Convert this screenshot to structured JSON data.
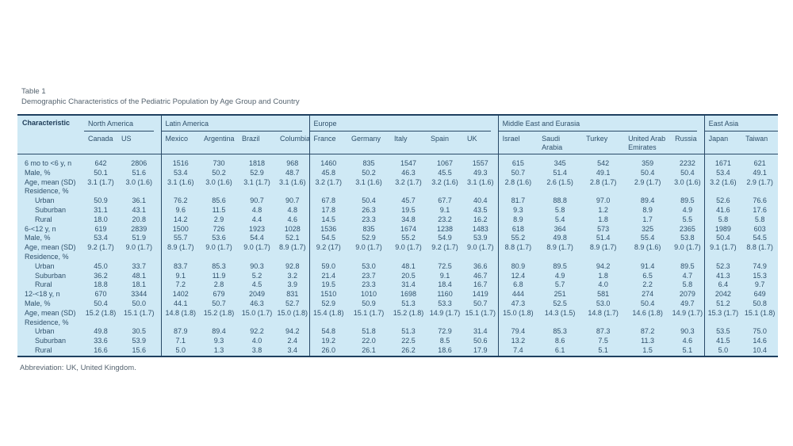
{
  "colors": {
    "table_background": "#cfe9f5",
    "rule": "#2a4a68",
    "text": "#2f506b"
  },
  "table": {
    "label": "Table 1",
    "title": "Demographic Characteristics of the Pediatric Population by Age Group and Country",
    "footnote": "Abbreviation: UK, United Kingdom.",
    "characteristic_header": "Characteristic",
    "regions": [
      {
        "name": "North America",
        "countries": [
          "Canada",
          "US"
        ]
      },
      {
        "name": "Latin America",
        "countries": [
          "Mexico",
          "Argentina",
          "Brazil",
          "Columbia"
        ]
      },
      {
        "name": "Europe",
        "countries": [
          "France",
          "Germany",
          "Italy",
          "Spain",
          "UK"
        ]
      },
      {
        "name": "Middle East and Eurasia",
        "countries": [
          "Israel",
          "Saudi Arabia",
          "Turkey",
          "United Arab Emirates",
          "Russia"
        ]
      },
      {
        "name": "East Asia",
        "countries": [
          "Japan",
          "Taiwan"
        ]
      }
    ],
    "rows": [
      {
        "label": "6 mo to <6 y, n",
        "indent": false,
        "values": [
          "642",
          "2806",
          "1516",
          "730",
          "1818",
          "968",
          "1460",
          "835",
          "1547",
          "1067",
          "1557",
          "615",
          "345",
          "542",
          "359",
          "2232",
          "1671",
          "621"
        ]
      },
      {
        "label": "Male, %",
        "indent": false,
        "values": [
          "50.1",
          "51.6",
          "53.4",
          "50.2",
          "52.9",
          "48.7",
          "45.8",
          "50.2",
          "46.3",
          "45.5",
          "49.3",
          "50.7",
          "51.4",
          "49.1",
          "50.4",
          "50.4",
          "53.4",
          "49.1"
        ]
      },
      {
        "label": "Age, mean (SD)",
        "indent": false,
        "values": [
          "3.1 (1.7)",
          "3.0 (1.6)",
          "3.1 (1.6)",
          "3.0 (1.6)",
          "3.1 (1.7)",
          "3.1 (1.6)",
          "3.2 (1.7)",
          "3.1 (1.6)",
          "3.2 (1.7)",
          "3.2 (1.6)",
          "3.1 (1.6)",
          "2.8 (1.6)",
          "2.6 (1.5)",
          "2.8 (1.7)",
          "2.9 (1.7)",
          "3.0 (1.6)",
          "3.2 (1.6)",
          "2.9 (1.7)"
        ]
      },
      {
        "label": "Residence, %",
        "indent": false,
        "values": []
      },
      {
        "label": "Urban",
        "indent": true,
        "values": [
          "50.9",
          "36.1",
          "76.2",
          "85.6",
          "90.7",
          "90.7",
          "67.8",
          "50.4",
          "45.7",
          "67.7",
          "40.4",
          "81.7",
          "88.8",
          "97.0",
          "89.4",
          "89.5",
          "52.6",
          "76.6"
        ]
      },
      {
        "label": "Suburban",
        "indent": true,
        "values": [
          "31.1",
          "43.1",
          "9.6",
          "11.5",
          "4.8",
          "4.8",
          "17.8",
          "26.3",
          "19.5",
          "9.1",
          "43.5",
          "9.3",
          "5.8",
          "1.2",
          "8.9",
          "4.9",
          "41.6",
          "17.6"
        ]
      },
      {
        "label": "Rural",
        "indent": true,
        "values": [
          "18.0",
          "20.8",
          "14.2",
          "2.9",
          "4.4",
          "4.6",
          "14.5",
          "23.3",
          "34.8",
          "23.2",
          "16.2",
          "8.9",
          "5.4",
          "1.8",
          "1.7",
          "5.5",
          "5.8",
          "5.8"
        ]
      },
      {
        "label": "6-<12 y, n",
        "indent": false,
        "values": [
          "619",
          "2839",
          "1500",
          "726",
          "1923",
          "1028",
          "1536",
          "835",
          "1674",
          "1238",
          "1483",
          "618",
          "364",
          "573",
          "325",
          "2365",
          "1989",
          "603"
        ]
      },
      {
        "label": "Male, %",
        "indent": false,
        "values": [
          "53.4",
          "51.9",
          "55.7",
          "53.6",
          "54.4",
          "52.1",
          "54.5",
          "52.9",
          "55.2",
          "54.9",
          "53.9",
          "55.2",
          "49.8",
          "51.4",
          "55.4",
          "53.8",
          "50.4",
          "54.5"
        ]
      },
      {
        "label": "Age, mean (SD)",
        "indent": false,
        "values": [
          "9.2 (1.7)",
          "9.0 (1.7)",
          "8.9 (1.7)",
          "9.0 (1.7)",
          "9.0 (1.7)",
          "8.9 (1.7)",
          "9.2 (17)",
          "9.0 (1.7)",
          "9.0 (1.7)",
          "9.2 (1.7)",
          "9.0 (1.7)",
          "8.8 (1.7)",
          "8.9 (1.7)",
          "8.9 (1.7)",
          "8.9 (1.6)",
          "9.0 (1.7)",
          "9.1 (1.7)",
          "8.8 (1.7)"
        ]
      },
      {
        "label": "Residence, %",
        "indent": false,
        "values": []
      },
      {
        "label": "Urban",
        "indent": true,
        "values": [
          "45.0",
          "33.7",
          "83.7",
          "85.3",
          "90.3",
          "92.8",
          "59.0",
          "53.0",
          "48.1",
          "72.5",
          "36.6",
          "80.9",
          "89.5",
          "94.2",
          "91.4",
          "89.5",
          "52.3",
          "74.9"
        ]
      },
      {
        "label": "Suburban",
        "indent": true,
        "values": [
          "36.2",
          "48.1",
          "9.1",
          "11.9",
          "5.2",
          "3.2",
          "21.4",
          "23.7",
          "20.5",
          "9.1",
          "46.7",
          "12.4",
          "4.9",
          "1.8",
          "6.5",
          "4.7",
          "41.3",
          "15.3"
        ]
      },
      {
        "label": "Rural",
        "indent": true,
        "values": [
          "18.8",
          "18.1",
          "7.2",
          "2.8",
          "4.5",
          "3.9",
          "19.5",
          "23.3",
          "31.4",
          "18.4",
          "16.7",
          "6.8",
          "5.7",
          "4.0",
          "2.2",
          "5.8",
          "6.4",
          "9.7"
        ]
      },
      {
        "label": "12-<18 y, n",
        "indent": false,
        "values": [
          "670",
          "3344",
          "1402",
          "679",
          "2049",
          "831",
          "1510",
          "1010",
          "1698",
          "1160",
          "1419",
          "444",
          "251",
          "581",
          "274",
          "2079",
          "2042",
          "649"
        ]
      },
      {
        "label": "Male, %",
        "indent": false,
        "values": [
          "50.4",
          "50.0",
          "44.1",
          "50.7",
          "46.3",
          "52.7",
          "52.9",
          "50.9",
          "51.3",
          "53.3",
          "50.7",
          "47.3",
          "52.5",
          "53.0",
          "50.4",
          "49.7",
          "51.2",
          "50.8"
        ]
      },
      {
        "label": "Age, mean (SD)",
        "indent": false,
        "values": [
          "15.2 (1.8)",
          "15.1 (1.7)",
          "14.8 (1.8)",
          "15.2 (1.8)",
          "15.0 (1.7)",
          "15.0 (1.8)",
          "15.4 (1.8)",
          "15.1 (1.7)",
          "15.2 (1.8)",
          "14.9 (1.7)",
          "15.1 (1.7)",
          "15.0 (1.8)",
          "14.3 (1.5)",
          "14.8 (1.7)",
          "14.6 (1.8)",
          "14.9 (1.7)",
          "15.3 (1.7)",
          "15.1 (1.8)"
        ]
      },
      {
        "label": "Residence, %",
        "indent": false,
        "values": []
      },
      {
        "label": "Urban",
        "indent": true,
        "values": [
          "49.8",
          "30.5",
          "87.9",
          "89.4",
          "92.2",
          "94.2",
          "54.8",
          "51.8",
          "51.3",
          "72.9",
          "31.4",
          "79.4",
          "85.3",
          "87.3",
          "87.2",
          "90.3",
          "53.5",
          "75.0"
        ]
      },
      {
        "label": "Suburban",
        "indent": true,
        "values": [
          "33.6",
          "53.9",
          "7.1",
          "9.3",
          "4.0",
          "2.4",
          "19.2",
          "22.0",
          "22.5",
          "8.5",
          "50.6",
          "13.2",
          "8.6",
          "7.5",
          "11.3",
          "4.6",
          "41.5",
          "14.6"
        ]
      },
      {
        "label": "Rural",
        "indent": true,
        "values": [
          "16.6",
          "15.6",
          "5.0",
          "1.3",
          "3.8",
          "3.4",
          "26.0",
          "26.1",
          "26.2",
          "18.6",
          "17.9",
          "7.4",
          "6.1",
          "5.1",
          "1.5",
          "5.1",
          "5.0",
          "10.4"
        ]
      }
    ]
  }
}
